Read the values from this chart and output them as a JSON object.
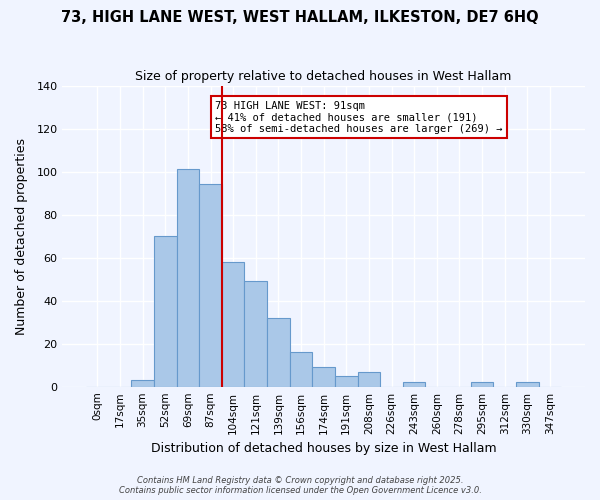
{
  "title": "73, HIGH LANE WEST, WEST HALLAM, ILKESTON, DE7 6HQ",
  "subtitle": "Size of property relative to detached houses in West Hallam",
  "xlabel": "Distribution of detached houses by size in West Hallam",
  "ylabel": "Number of detached properties",
  "bar_labels": [
    "0sqm",
    "17sqm",
    "35sqm",
    "52sqm",
    "69sqm",
    "87sqm",
    "104sqm",
    "121sqm",
    "139sqm",
    "156sqm",
    "174sqm",
    "191sqm",
    "208sqm",
    "226sqm",
    "243sqm",
    "260sqm",
    "278sqm",
    "295sqm",
    "312sqm",
    "330sqm",
    "347sqm"
  ],
  "bar_values": [
    0,
    0,
    3,
    70,
    101,
    94,
    58,
    49,
    32,
    16,
    9,
    5,
    7,
    0,
    2,
    0,
    0,
    2,
    0,
    2,
    0
  ],
  "bar_color": "#aac8e8",
  "bar_edge_color": "#6699cc",
  "vline_x": 5.5,
  "vline_color": "#cc0000",
  "annotation_text": "73 HIGH LANE WEST: 91sqm\n← 41% of detached houses are smaller (191)\n58% of semi-detached houses are larger (269) →",
  "annotation_box_color": "#ffffff",
  "annotation_box_edge": "#cc0000",
  "ylim": [
    0,
    140
  ],
  "yticks": [
    0,
    20,
    40,
    60,
    80,
    100,
    120,
    140
  ],
  "background_color": "#f0f4ff",
  "grid_color": "#ffffff",
  "footer_line1": "Contains HM Land Registry data © Crown copyright and database right 2025.",
  "footer_line2": "Contains public sector information licensed under the Open Government Licence v3.0."
}
